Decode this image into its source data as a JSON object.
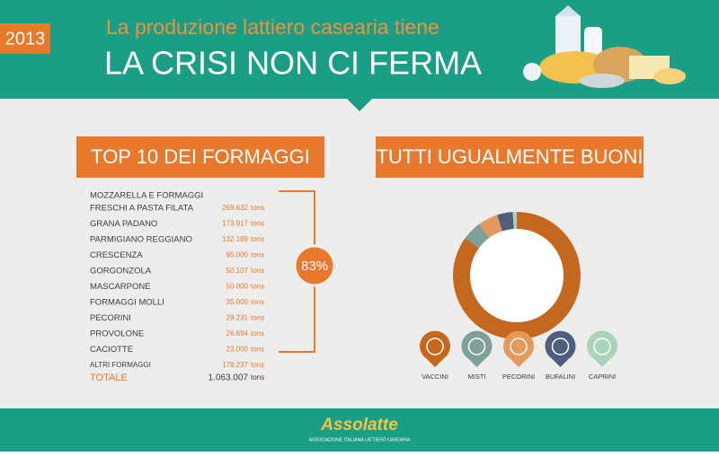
{
  "header": {
    "year": "2013",
    "subtitle": "La produzione lattiero casearia tiene",
    "title": "LA CRISI NON CI FERMA"
  },
  "table": {
    "title": "TOP 10 DEI FORMAGGI",
    "rows": [
      {
        "name": [
          "MOZZARELLA E FORMAGGI",
          "FRESCHI A PASTA FILATA"
        ],
        "value": "269.632",
        "unit": "tons"
      },
      {
        "name": [
          "GRANA PADANO"
        ],
        "value": "173.917",
        "unit": "tons"
      },
      {
        "name": [
          "PARMIGIANO REGGIANO"
        ],
        "value": "132.189",
        "unit": "tons"
      },
      {
        "name": [
          "CRESCENZA"
        ],
        "value": "95.000",
        "unit": "tons"
      },
      {
        "name": [
          "GORGONZOLA"
        ],
        "value": "50.107",
        "unit": "tons"
      },
      {
        "name": [
          "MASCARPONE"
        ],
        "value": "50.000",
        "unit": "tons"
      },
      {
        "name": [
          "FORMAGGI MOLLI"
        ],
        "value": "35.000",
        "unit": "tons"
      },
      {
        "name": [
          "PECORINI"
        ],
        "value": "29.231",
        "unit": "tons"
      },
      {
        "name": [
          "PROVOLONE"
        ],
        "value": "26.694",
        "unit": "tons"
      },
      {
        "name": [
          "CACIOTTE"
        ],
        "value": "23.000",
        "unit": "tons"
      },
      {
        "name": [
          "ALTRI FORMAGGI"
        ],
        "value": "178.237",
        "unit": "tons"
      }
    ],
    "total": {
      "name": "TOTALE",
      "value": "1.063.007",
      "unit": "tons"
    },
    "share": "83%"
  },
  "chart_data": {
    "type": "donut",
    "title": "TUTTI UGUALMENTE BUONI",
    "categories": [
      "VACCINI",
      "MISTI",
      "PECORINI",
      "BUFALINI",
      "CAPRINI"
    ],
    "values": [
      85,
      5,
      5,
      4,
      1
    ],
    "colors": [
      "#c4681f",
      "#7f9f9b",
      "#e39a5c",
      "#4d5f7a",
      "#a9d4b9"
    ]
  },
  "footer": {
    "logo": "Assolatte",
    "tagline": "ASSOCIAZIONE ITALIANA LATTIERO CASEARIA"
  }
}
